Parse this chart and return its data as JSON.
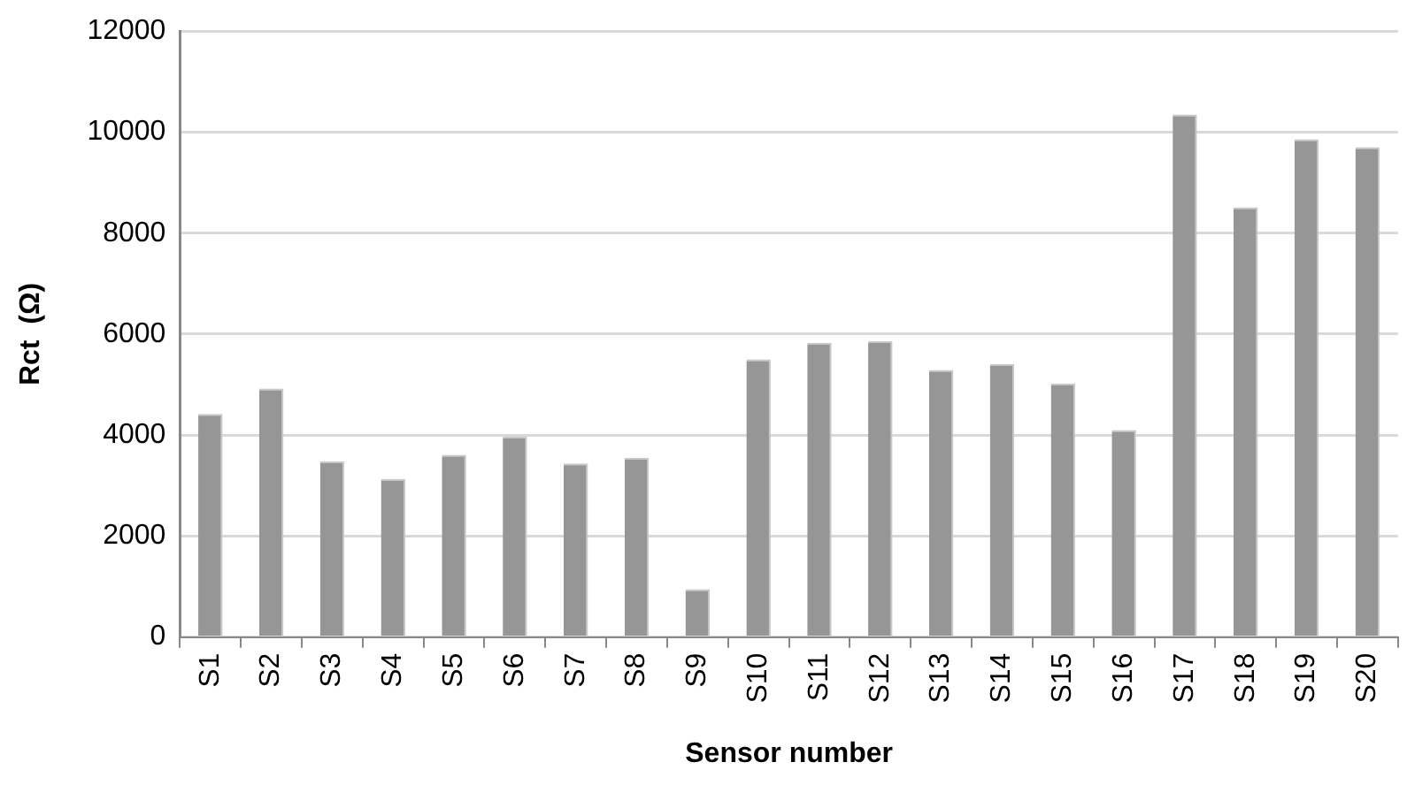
{
  "chart_data": {
    "type": "bar",
    "xlabel": "Sensor number",
    "ylabel": "Rct  (Ω)",
    "categories": [
      "S1",
      "S2",
      "S3",
      "S4",
      "S5",
      "S6",
      "S7",
      "S8",
      "S9",
      "S10",
      "S11",
      "S12",
      "S13",
      "S14",
      "S15",
      "S16",
      "S17",
      "S18",
      "S19",
      "S20"
    ],
    "values": [
      4420,
      4920,
      3480,
      3130,
      3610,
      3970,
      3440,
      3550,
      950,
      5500,
      5830,
      5860,
      5290,
      5410,
      5020,
      4100,
      10350,
      8510,
      9860,
      9700
    ],
    "color": "#969696",
    "ylim": [
      0,
      12000
    ],
    "yticks": [
      0,
      2000,
      4000,
      6000,
      8000,
      10000,
      12000
    ],
    "grid": "y",
    "legend": false
  }
}
